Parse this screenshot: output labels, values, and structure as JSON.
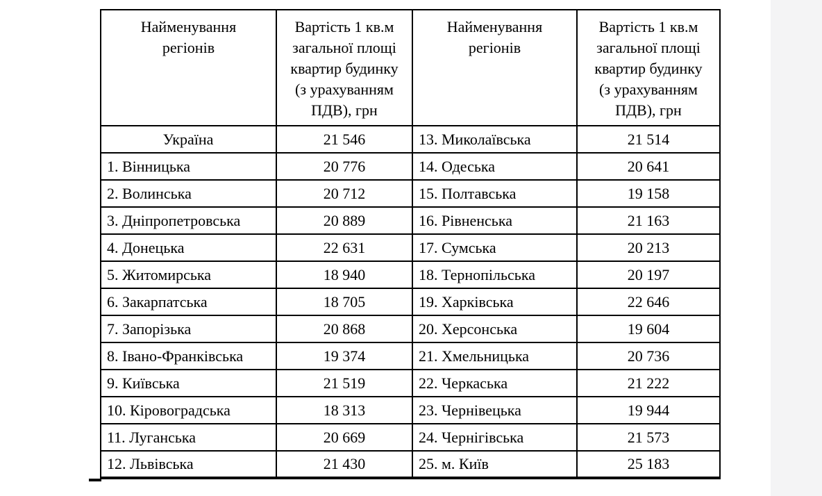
{
  "page": {
    "background_color": "#ffffff",
    "side_strip_color": "#f4f4f5",
    "table_border_color": "#000000",
    "text_color": "#000000"
  },
  "table": {
    "headers": [
      "Найменування\nрегіонів",
      "Вартість 1 кв.м\nзагальної площі\nквартир будинку\n(з урахуванням\nПДВ), грн",
      "Найменування\nрегіонів",
      "Вартість 1 кв.м\nзагальної площі\nквартир будинку\n(з урахуванням\nПДВ), грн"
    ],
    "rows": [
      {
        "left_region": "Україна",
        "left_center": true,
        "left_value": "21 546",
        "right_region": "13. Миколаївська",
        "right_value": "21 514"
      },
      {
        "left_region": "1. Вінницька",
        "left_center": false,
        "left_value": "20 776",
        "right_region": "14. Одеська",
        "right_value": "20 641"
      },
      {
        "left_region": "2. Волинська",
        "left_center": false,
        "left_value": "20 712",
        "right_region": "15. Полтавська",
        "right_value": "19 158"
      },
      {
        "left_region": "3. Дніпропетровська",
        "left_center": false,
        "left_value": "20 889",
        "right_region": "16. Рівненська",
        "right_value": "21 163"
      },
      {
        "left_region": "4. Донецька",
        "left_center": false,
        "left_value": "22 631",
        "right_region": "17. Сумська",
        "right_value": "20 213"
      },
      {
        "left_region": "5. Житомирська",
        "left_center": false,
        "left_value": "18 940",
        "right_region": "18. Тернопільська",
        "right_value": "20 197"
      },
      {
        "left_region": "6. Закарпатська",
        "left_center": false,
        "left_value": "18 705",
        "right_region": "19. Харківська",
        "right_value": "22 646"
      },
      {
        "left_region": "7. Запорізька",
        "left_center": false,
        "left_value": "20 868",
        "right_region": "20. Херсонська",
        "right_value": "19 604"
      },
      {
        "left_region": "8. Івано-Франківська",
        "left_center": false,
        "left_value": "19 374",
        "right_region": "21. Хмельницька",
        "right_value": "20 736"
      },
      {
        "left_region": "9. Київська",
        "left_center": false,
        "left_value": "21 519",
        "right_region": "22. Черкаська",
        "right_value": "21 222"
      },
      {
        "left_region": "10. Кіровоградська",
        "left_center": false,
        "left_value": "18 313",
        "right_region": "23. Чернівецька",
        "right_value": "19 944"
      },
      {
        "left_region": "11. Луганська",
        "left_center": false,
        "left_value": "20 669",
        "right_region": "24. Чернігівська",
        "right_value": "21 573"
      },
      {
        "left_region": "12. Львівська",
        "left_center": false,
        "left_value": "21 430",
        "right_region": "25. м. Київ",
        "right_value": "25 183"
      }
    ]
  }
}
